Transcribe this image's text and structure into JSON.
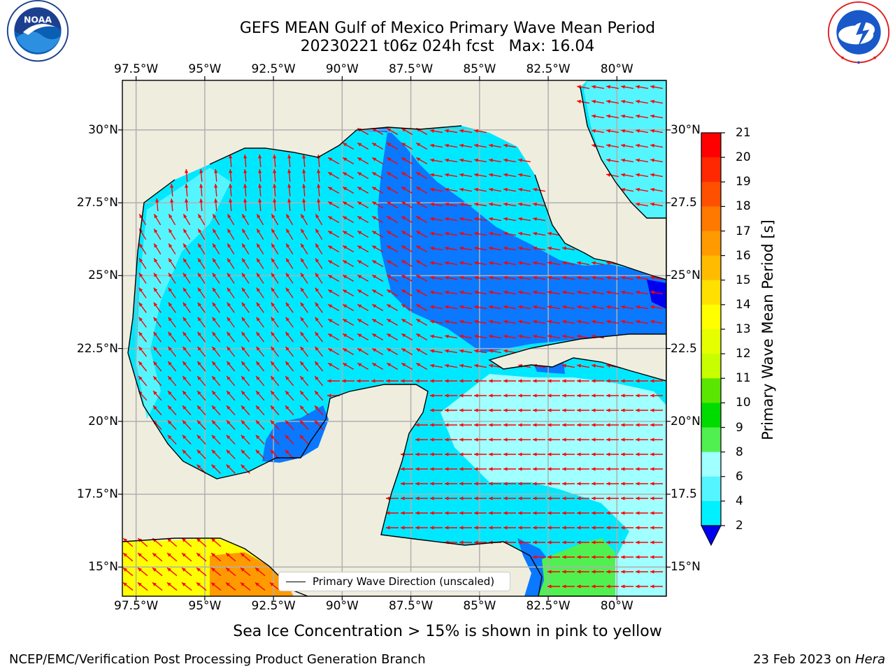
{
  "title": {
    "line1": "GEFS MEAN Gulf of Mexico Primary Wave Mean Period",
    "line2": "20230221 t06z 024h fcst   Max: 16.04"
  },
  "logos": {
    "left_icon": "noaa-logo-icon",
    "left_text": "NOAA",
    "left_ring": "NATIONAL OCEANIC AND ATMOSPHERIC ADMINISTRATION · U.S. DEPARTMENT OF COMMERCE",
    "right_icon": "nws-logo-icon",
    "right_ring": "NATIONAL WEATHER SERVICE"
  },
  "map": {
    "lon_range": [
      -98,
      -78.2
    ],
    "lat_range": [
      14.0,
      31.7
    ],
    "lon_ticks": [
      "97.5°W",
      "95°W",
      "92.5°W",
      "90°W",
      "87.5°W",
      "85°W",
      "82.5°W",
      "80°W"
    ],
    "lat_ticks_left": [
      "30°N",
      "27.5°N",
      "25°N",
      "22.5°N",
      "20°N",
      "17.5°N",
      "15°N"
    ],
    "lat_ticks_right": [
      "30°N",
      "27.5",
      "25°N",
      "22.5",
      "20°N",
      "17.5",
      "15°N"
    ],
    "legend_label": "Primary Wave Direction (unscaled)",
    "colors": {
      "land": "#efedde",
      "period_2_4": "#0a78ff",
      "period_4_6": "#00e8ff",
      "period_6_8": "#55f5ff",
      "period_8_9": "#a0ffff",
      "period_below_2": "#0000f0",
      "arrow": "#ff0000",
      "grid": "#b0b0b0"
    }
  },
  "colorbar": {
    "title": "Primary Wave Mean Period [s]",
    "labels": [
      "21",
      "20",
      "19",
      "18",
      "17",
      "16",
      "15",
      "14",
      "13",
      "12",
      "11",
      "10",
      "9",
      "8",
      "6",
      "4",
      "2"
    ],
    "colors": [
      "#ff0000",
      "#ff2800",
      "#ff5000",
      "#ff7800",
      "#ff9b00",
      "#ffbb00",
      "#ffe000",
      "#ffff00",
      "#e6ff00",
      "#c8ff00",
      "#5ae600",
      "#00dc00",
      "#50f050",
      "#a0ffff",
      "#55f5ff",
      "#00f0ff",
      "#0a78ff"
    ],
    "extend_color": "#0000f0"
  },
  "note": "Sea Ice Concentration > 15% is shown in pink to yellow",
  "footer": {
    "left": "NCEP/EMC/Verification Post Processing Product Generation Branch",
    "right_prefix": "23 Feb 2023 on ",
    "right_host": "Hera"
  }
}
